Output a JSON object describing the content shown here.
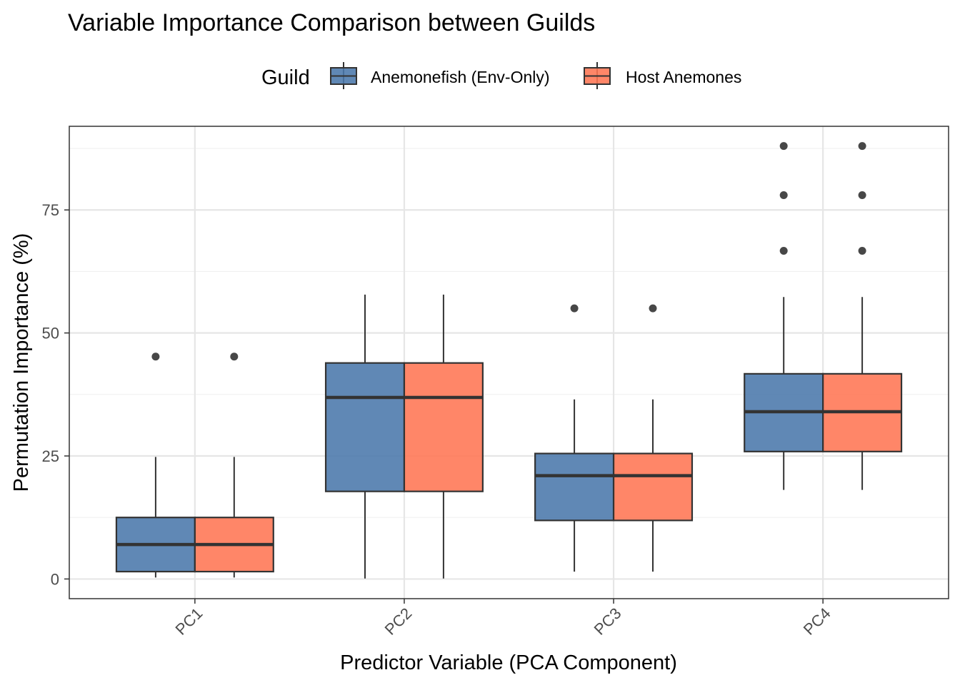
{
  "chart_data": {
    "type": "boxplot",
    "title": "Variable Importance Comparison between Guilds",
    "xlabel": "Predictor Variable (PCA Component)",
    "ylabel": "Permutation Importance (%)",
    "categories": [
      "PC1",
      "PC2",
      "PC3",
      "PC4"
    ],
    "y_ticks": [
      0,
      25,
      50,
      75
    ],
    "ylim": [
      -4,
      92
    ],
    "grid": true,
    "legend": {
      "title": "Guild",
      "position": "top"
    },
    "series": [
      {
        "name": "Anemonefish (Env-Only)",
        "color": "#4a78ab",
        "boxes": [
          {
            "category": "PC1",
            "whisker_low": 0.3,
            "q1": 1.5,
            "median": 7.0,
            "q3": 12.5,
            "whisker_high": 24.8,
            "outliers": [
              45.2
            ]
          },
          {
            "category": "PC2",
            "whisker_low": 0.1,
            "q1": 17.8,
            "median": 36.9,
            "q3": 43.9,
            "whisker_high": 57.8,
            "outliers": []
          },
          {
            "category": "PC3",
            "whisker_low": 1.5,
            "q1": 11.9,
            "median": 21.0,
            "q3": 25.5,
            "whisker_high": 36.5,
            "outliers": [
              55.0
            ]
          },
          {
            "category": "PC4",
            "whisker_low": 18.1,
            "q1": 25.9,
            "median": 34.0,
            "q3": 41.7,
            "whisker_high": 57.3,
            "outliers": [
              66.7,
              78.0,
              88.0
            ]
          }
        ]
      },
      {
        "name": "Host Anemones",
        "color": "#ff7553",
        "boxes": [
          {
            "category": "PC1",
            "whisker_low": 0.3,
            "q1": 1.5,
            "median": 7.0,
            "q3": 12.5,
            "whisker_high": 24.8,
            "outliers": [
              45.2
            ]
          },
          {
            "category": "PC2",
            "whisker_low": 0.1,
            "q1": 17.8,
            "median": 36.9,
            "q3": 43.9,
            "whisker_high": 57.8,
            "outliers": []
          },
          {
            "category": "PC3",
            "whisker_low": 1.5,
            "q1": 11.9,
            "median": 21.0,
            "q3": 25.5,
            "whisker_high": 36.5,
            "outliers": [
              55.0
            ]
          },
          {
            "category": "PC4",
            "whisker_low": 18.1,
            "q1": 25.9,
            "median": 34.0,
            "q3": 41.7,
            "whisker_high": 57.3,
            "outliers": [
              66.7,
              78.0,
              88.0
            ]
          }
        ]
      }
    ]
  }
}
